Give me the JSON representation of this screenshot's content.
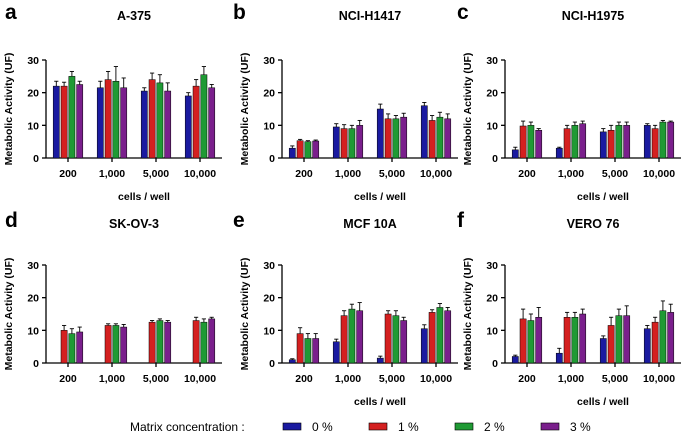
{
  "figure": {
    "legend": {
      "title": "Matrix concentration :",
      "entries": [
        {
          "label": "0 %",
          "color": "#1a1aa0"
        },
        {
          "label": "1 %",
          "color": "#d42020"
        },
        {
          "label": "2 %",
          "color": "#1f9a34"
        },
        {
          "label": "3 %",
          "color": "#7a1f8c"
        }
      ]
    }
  },
  "chart_data": [
    {
      "panel": "a",
      "type": "bar",
      "title": "A-375",
      "xlabel": "cells / well",
      "ylabel": "Metabolic Activity (UF)",
      "ylim": [
        0,
        30
      ],
      "yticks": [
        0,
        10,
        20,
        30
      ],
      "categories": [
        "200",
        "1,000",
        "5,000",
        "10,000"
      ],
      "series": [
        {
          "name": "0 %",
          "values": [
            22.0,
            21.5,
            20.5,
            19.0
          ],
          "errors": [
            1.5,
            2.0,
            1.0,
            1.0
          ]
        },
        {
          "name": "1 %",
          "values": [
            22.0,
            24.0,
            24.0,
            22.0
          ],
          "errors": [
            1.2,
            2.5,
            2.0,
            2.0
          ]
        },
        {
          "name": "2 %",
          "values": [
            25.0,
            23.5,
            23.0,
            25.5
          ],
          "errors": [
            1.5,
            4.5,
            2.5,
            2.5
          ]
        },
        {
          "name": "3 %",
          "values": [
            22.5,
            21.5,
            20.5,
            21.5
          ],
          "errors": [
            1.0,
            3.0,
            2.5,
            1.0
          ]
        }
      ]
    },
    {
      "panel": "b",
      "type": "bar",
      "title": "NCI-H1417",
      "xlabel": "cells / well",
      "ylabel": "Metabolic Activity (UF)",
      "ylim": [
        0,
        30
      ],
      "yticks": [
        0,
        10,
        20,
        30
      ],
      "categories": [
        "200",
        "1,000",
        "5,000",
        "10,000"
      ],
      "series": [
        {
          "name": "0 %",
          "values": [
            3.0,
            9.5,
            15.0,
            16.0
          ],
          "errors": [
            0.7,
            1.0,
            1.5,
            1.0
          ]
        },
        {
          "name": "1 %",
          "values": [
            5.3,
            9.0,
            12.0,
            11.5
          ],
          "errors": [
            0.4,
            1.2,
            1.5,
            1.5
          ]
        },
        {
          "name": "2 %",
          "values": [
            5.0,
            9.0,
            12.0,
            12.5
          ],
          "errors": [
            0.3,
            1.0,
            1.0,
            1.5
          ]
        },
        {
          "name": "3 %",
          "values": [
            5.2,
            10.0,
            12.5,
            12.0
          ],
          "errors": [
            0.3,
            1.5,
            1.2,
            1.5
          ]
        }
      ]
    },
    {
      "panel": "c",
      "type": "bar",
      "title": "NCI-H1975",
      "xlabel": "cells / well",
      "ylabel": "Metabolic Activity (UF)",
      "ylim": [
        0,
        30
      ],
      "yticks": [
        0,
        10,
        20,
        30
      ],
      "categories": [
        "200",
        "1,000",
        "5,000",
        "10,000"
      ],
      "series": [
        {
          "name": "0 %",
          "values": [
            2.5,
            3.0,
            8.0,
            10.0
          ],
          "errors": [
            0.8,
            0.3,
            1.0,
            0.5
          ]
        },
        {
          "name": "1 %",
          "values": [
            9.8,
            9.0,
            8.5,
            9.0
          ],
          "errors": [
            1.5,
            1.0,
            1.5,
            1.0
          ]
        },
        {
          "name": "2 %",
          "values": [
            10.0,
            10.0,
            10.0,
            11.0
          ],
          "errors": [
            1.0,
            1.0,
            1.0,
            0.5
          ]
        },
        {
          "name": "3 %",
          "values": [
            8.5,
            10.5,
            10.0,
            11.0
          ],
          "errors": [
            0.5,
            0.8,
            1.0,
            0.3
          ]
        }
      ]
    },
    {
      "panel": "d",
      "type": "bar",
      "title": "SK-OV-3",
      "xlabel": "",
      "ylabel": "Metabolic Activity (UF)",
      "ylim": [
        0,
        30
      ],
      "yticks": [
        0,
        10,
        20,
        30
      ],
      "categories": [
        "200",
        "1,000",
        "5,000",
        "10,000"
      ],
      "series": [
        {
          "name": "0 %",
          "values": [
            0.0,
            0.0,
            0.0,
            0.0
          ],
          "errors": [
            0,
            0,
            0,
            0
          ]
        },
        {
          "name": "1 %",
          "values": [
            10.0,
            11.5,
            12.5,
            13.0
          ],
          "errors": [
            1.5,
            0.5,
            0.5,
            1.0
          ]
        },
        {
          "name": "2 %",
          "values": [
            9.0,
            11.5,
            13.0,
            12.5
          ],
          "errors": [
            1.5,
            0.5,
            0.5,
            1.0
          ]
        },
        {
          "name": "3 %",
          "values": [
            9.5,
            11.0,
            12.5,
            13.5
          ],
          "errors": [
            1.5,
            0.8,
            0.5,
            0.5
          ]
        }
      ]
    },
    {
      "panel": "e",
      "type": "bar",
      "title": "MCF 10A",
      "xlabel": "cells / well",
      "ylabel": "Metabolic Activity (UF)",
      "ylim": [
        0,
        30
      ],
      "yticks": [
        0,
        10,
        20,
        30
      ],
      "categories": [
        "200",
        "1,000",
        "5,000",
        "10,000"
      ],
      "series": [
        {
          "name": "0 %",
          "values": [
            1.0,
            6.5,
            1.5,
            10.5
          ],
          "errors": [
            0.3,
            0.8,
            0.6,
            1.2
          ]
        },
        {
          "name": "1 %",
          "values": [
            9.0,
            14.5,
            15.0,
            15.5
          ],
          "errors": [
            1.8,
            1.5,
            1.0,
            0.8
          ]
        },
        {
          "name": "2 %",
          "values": [
            7.5,
            16.5,
            14.5,
            17.0
          ],
          "errors": [
            1.5,
            1.5,
            1.5,
            1.2
          ]
        },
        {
          "name": "3 %",
          "values": [
            7.5,
            16.0,
            13.0,
            16.0
          ],
          "errors": [
            1.5,
            2.5,
            1.0,
            1.0
          ]
        }
      ]
    },
    {
      "panel": "f",
      "type": "bar",
      "title": "VERO 76",
      "xlabel": "cells / well",
      "ylabel": "Metabolic Activity (UF)",
      "ylim": [
        0,
        30
      ],
      "yticks": [
        0,
        10,
        20,
        30
      ],
      "categories": [
        "200",
        "1,000",
        "5,000",
        "10,000"
      ],
      "series": [
        {
          "name": "0 %",
          "values": [
            2.0,
            3.0,
            7.5,
            10.5
          ],
          "errors": [
            0.4,
            1.5,
            0.8,
            1.0
          ]
        },
        {
          "name": "1 %",
          "values": [
            13.5,
            14.0,
            11.5,
            12.5
          ],
          "errors": [
            3.0,
            1.5,
            2.5,
            1.5
          ]
        },
        {
          "name": "2 %",
          "values": [
            13.0,
            14.0,
            14.5,
            16.0
          ],
          "errors": [
            2.0,
            1.5,
            2.0,
            3.0
          ]
        },
        {
          "name": "3 %",
          "values": [
            14.0,
            15.0,
            14.5,
            15.5
          ],
          "errors": [
            3.0,
            1.5,
            3.0,
            2.5
          ]
        }
      ]
    }
  ]
}
